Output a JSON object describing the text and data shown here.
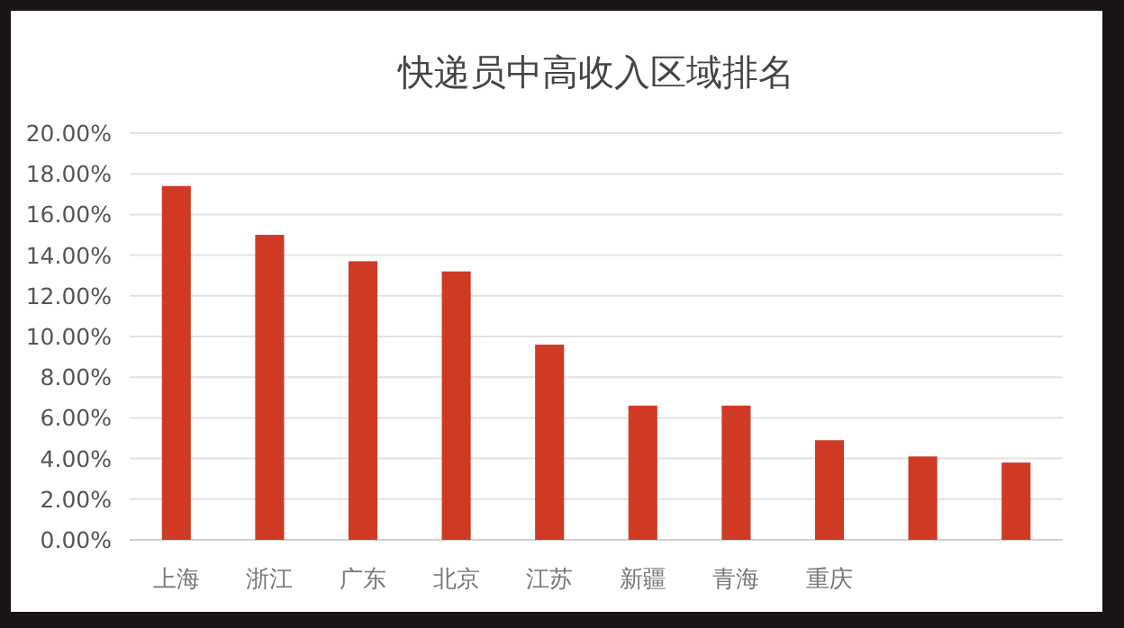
{
  "chart_data": {
    "type": "bar",
    "title": "快递员中高收入区域排名",
    "categories": [
      "上海",
      "浙江",
      "广东",
      "北京",
      "江苏",
      "新疆",
      "青海",
      "重庆",
      null,
      null
    ],
    "values": [
      17.4,
      15.0,
      13.7,
      13.2,
      9.6,
      6.6,
      6.6,
      4.9,
      4.1,
      3.8
    ],
    "color": "#d03a24",
    "ylim": [
      0,
      20
    ],
    "yticks": [
      {
        "value": 0,
        "label": "0.00%"
      },
      {
        "value": 2,
        "label": "2.00%"
      },
      {
        "value": 4,
        "label": "4.00%"
      },
      {
        "value": 6,
        "label": "6.00%"
      },
      {
        "value": 8,
        "label": "8.00%"
      },
      {
        "value": 10,
        "label": "10.00%"
      },
      {
        "value": 12,
        "label": "12.00%"
      },
      {
        "value": 14,
        "label": "14.00%"
      },
      {
        "value": 16,
        "label": "16.00%"
      },
      {
        "value": 18,
        "label": "18.00%"
      },
      {
        "value": 20,
        "label": "20.00%"
      }
    ],
    "grid": "y"
  }
}
